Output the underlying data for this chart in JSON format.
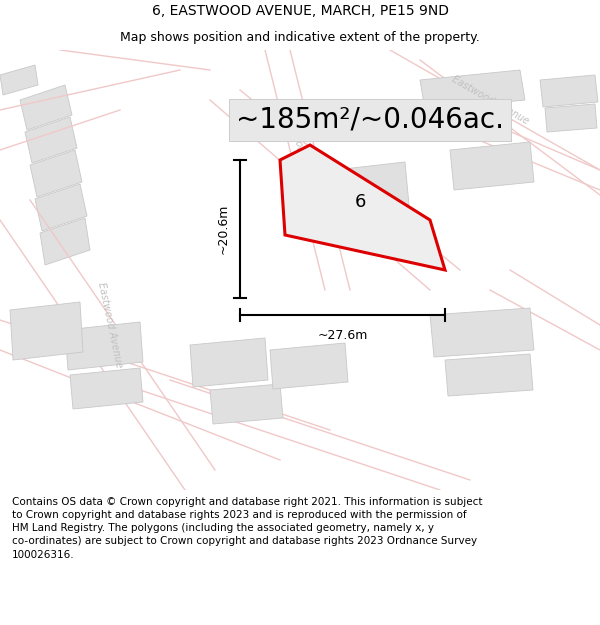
{
  "title": "6, EASTWOOD AVENUE, MARCH, PE15 9ND",
  "subtitle": "Map shows position and indicative extent of the property.",
  "footer": "Contains OS data © Crown copyright and database right 2021. This information is subject\nto Crown copyright and database rights 2023 and is reproduced with the permission of\nHM Land Registry. The polygons (including the associated geometry, namely x, y\nco-ordinates) are subject to Crown copyright and database rights 2023 Ordnance Survey\n100026316.",
  "area_text": "~185m²/~0.046ac.",
  "label_6": "6",
  "dim_width": "~27.6m",
  "dim_height": "~20.6m",
  "bg_color": "#ffffff",
  "road_outline_color": "#f0c8c8",
  "road_fill_color": "#f5f5f5",
  "building_fill": "#e0e0e0",
  "building_edge": "#c8c8c8",
  "property_color": "#dd0000",
  "property_fill": "#eeeeee",
  "dim_color": "#000000",
  "title_fontsize": 10,
  "subtitle_fontsize": 9,
  "footer_fontsize": 7.5,
  "area_fontsize": 20,
  "label_fontsize": 13,
  "dim_fontsize": 9,
  "street_label_color": "#c0c0c0",
  "street_label_fontsize": 7
}
